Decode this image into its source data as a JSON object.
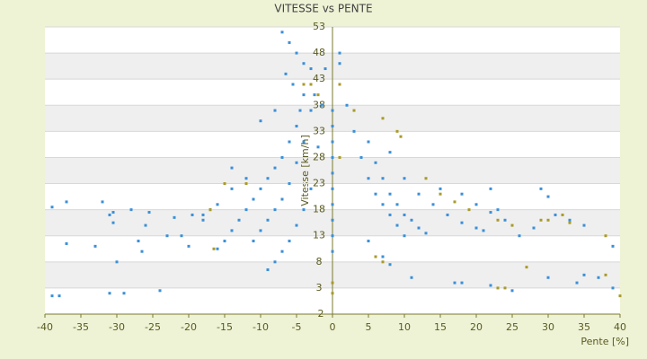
{
  "chart_data": {
    "type": "scatter",
    "title": "VITESSE vs PENTE",
    "x_label": "Pente [%]",
    "y_label": "Vitesse [km/h]",
    "xlim": [
      -40,
      40
    ],
    "xticks": [
      -40,
      -35,
      -30,
      -25,
      -20,
      -15,
      -10,
      -5,
      0,
      5,
      10,
      15,
      20,
      25,
      30,
      35,
      40
    ],
    "ylim": [
      -2,
      53
    ],
    "yticks": [
      -2,
      3,
      8,
      13,
      18,
      23,
      28,
      33,
      38,
      43,
      48,
      53
    ],
    "grid": true,
    "alternating_bands": true,
    "series": [
      {
        "color": "#3a8fd8",
        "x": [
          -39,
          -38,
          -39,
          -37,
          -37,
          -33,
          -32,
          -31,
          -30.5,
          -30.5,
          -30,
          -31,
          -29,
          -28,
          -27,
          -26.5,
          -26,
          -25.5,
          -24,
          -23,
          -22,
          -21,
          -20,
          -19.5,
          -18,
          -17,
          -16,
          -15,
          -14,
          -13,
          -12,
          -11,
          -10,
          -9,
          -8,
          -7,
          -6,
          -5,
          -4.5,
          -4,
          -11,
          -10,
          -9,
          -8,
          -7,
          -6,
          -5,
          -4,
          -3,
          -2.5,
          -9,
          -8,
          -7,
          -6,
          -5,
          -4,
          -3,
          -2,
          -1.5,
          -1,
          -7,
          -6,
          -5,
          -4,
          -6.5,
          -5.5,
          -3,
          -10,
          -8,
          -12,
          -14,
          -16,
          -18,
          -14,
          0,
          0,
          0,
          0,
          0,
          0,
          0,
          0,
          0,
          0,
          1,
          1,
          2,
          3,
          4,
          5,
          6,
          7,
          8,
          9,
          10,
          5,
          6,
          7,
          8,
          9,
          10,
          11,
          12,
          13,
          8,
          10,
          12,
          14,
          16,
          18,
          20,
          21,
          5,
          7,
          8,
          11,
          15,
          18,
          20,
          22,
          24,
          26,
          28,
          29,
          30,
          31,
          33,
          35,
          37,
          39,
          39,
          22,
          23,
          17,
          18,
          22,
          25,
          30,
          34,
          35
        ],
        "values": [
          18.5,
          1.5,
          1.5,
          11.5,
          19.5,
          11,
          19.5,
          17,
          17.5,
          15.5,
          8,
          2,
          2,
          18,
          12,
          10,
          15,
          17.5,
          2.5,
          13,
          16.5,
          13,
          11,
          17,
          16,
          18,
          10.5,
          12,
          14,
          16,
          18,
          20,
          22,
          24,
          26,
          28,
          31,
          34,
          37,
          40,
          12,
          14,
          16,
          18,
          20,
          23,
          27,
          31,
          37,
          40,
          6.5,
          8,
          10,
          12,
          15,
          18,
          22,
          30,
          38,
          45,
          52,
          50,
          48,
          46,
          44,
          42,
          45,
          35,
          37,
          24,
          22,
          19,
          17,
          26,
          10,
          13,
          16,
          19,
          22,
          25,
          28,
          31,
          34,
          37,
          48,
          46,
          38,
          33,
          28,
          24,
          21,
          19,
          17,
          15,
          13,
          31,
          27,
          24,
          21,
          19,
          17,
          16,
          14.5,
          13.5,
          29,
          24,
          21,
          19,
          17,
          15.5,
          14.5,
          14,
          12,
          9,
          7.5,
          5,
          22,
          21,
          19,
          17.5,
          16,
          13,
          14.5,
          22,
          20.5,
          17,
          16,
          15,
          5,
          11,
          3,
          22,
          18,
          4,
          4,
          3.5,
          2.5,
          5,
          4,
          5.5
        ]
      },
      {
        "color": "#a89a2a",
        "x": [
          3,
          7,
          9,
          9.5,
          13,
          15,
          17,
          19,
          23,
          25,
          27,
          29,
          30,
          32,
          33,
          38,
          38,
          40,
          1,
          1,
          0,
          0,
          -2,
          -3,
          -4,
          -12,
          -15,
          -16.5,
          -17,
          23,
          24,
          6,
          7
        ],
        "values": [
          37,
          35.5,
          33,
          32,
          24,
          21,
          19.5,
          18,
          16,
          15,
          7,
          16,
          16,
          17,
          15.5,
          13,
          5.5,
          1.5,
          42,
          28,
          2,
          4,
          40,
          42,
          42,
          23,
          23,
          10.5,
          18,
          3,
          3,
          9,
          8
        ]
      }
    ]
  }
}
